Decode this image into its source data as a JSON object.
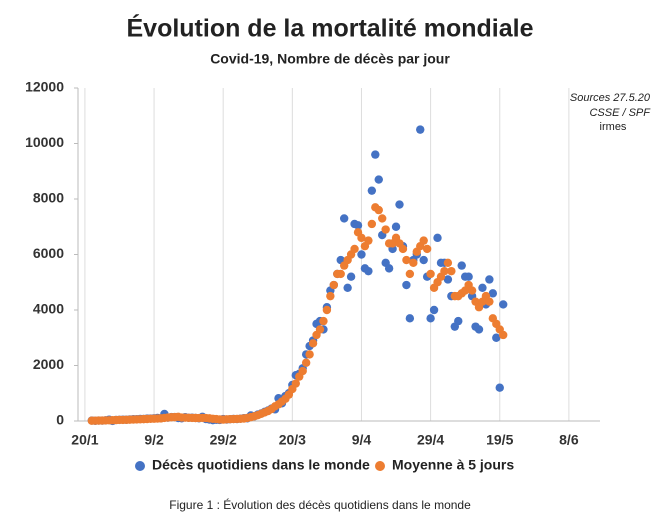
{
  "chart_data": {
    "type": "scatter",
    "title": "Évolution de la mortalité mondiale",
    "subtitle": "Covid-19, Nombre de décès par jour",
    "source_lines": [
      "Sources 27.5.20",
      "CSSE / SPF"
    ],
    "logo": "irmes",
    "caption": "Figure 1 : Évolution des décès quotidiens dans le monde",
    "legend": "bottom",
    "grid": "x",
    "xlim": [
      -2,
      149
    ],
    "xticks": [
      {
        "value": 0,
        "label": "20/1"
      },
      {
        "value": 20,
        "label": "9/2"
      },
      {
        "value": 40,
        "label": "29/2"
      },
      {
        "value": 60,
        "label": "20/3"
      },
      {
        "value": 80,
        "label": "9/4"
      },
      {
        "value": 100,
        "label": "29/4"
      },
      {
        "value": 120,
        "label": "19/5"
      },
      {
        "value": 140,
        "label": "8/6"
      }
    ],
    "ylim": [
      0,
      12000
    ],
    "yticks": [
      0,
      2000,
      4000,
      6000,
      8000,
      10000,
      12000
    ],
    "x": [
      2,
      3,
      4,
      5,
      6,
      7,
      8,
      9,
      10,
      11,
      12,
      13,
      14,
      15,
      16,
      17,
      18,
      19,
      20,
      21,
      22,
      23,
      24,
      25,
      26,
      27,
      28,
      29,
      30,
      31,
      32,
      33,
      34,
      35,
      36,
      37,
      38,
      39,
      40,
      41,
      42,
      43,
      44,
      45,
      46,
      47,
      48,
      49,
      50,
      51,
      52,
      53,
      54,
      55,
      56,
      57,
      58,
      59,
      60,
      61,
      62,
      63,
      64,
      65,
      66,
      67,
      68,
      69,
      70,
      71,
      72,
      73,
      74,
      75,
      76,
      77,
      78,
      79,
      80,
      81,
      82,
      83,
      84,
      85,
      86,
      87,
      88,
      89,
      90,
      91,
      92,
      93,
      94,
      95,
      96,
      97,
      98,
      99,
      100,
      101,
      102,
      103,
      104,
      105,
      106,
      107,
      108,
      109,
      110,
      111,
      112,
      113,
      114,
      115,
      116,
      117,
      118,
      119,
      120,
      121
    ],
    "series": [
      {
        "name": "Décès quotidiens dans le monde",
        "color": "#4472c4",
        "values": [
          17,
          8,
          16,
          14,
          26,
          49,
          2,
          38,
          42,
          46,
          45,
          57,
          64,
          66,
          73,
          73,
          86,
          89,
          97,
          108,
          97,
          254,
          121,
          143,
          142,
          105,
          98,
          136,
          114,
          118,
          109,
          97,
          150,
          71,
          52,
          29,
          44,
          37,
          68,
          53,
          66,
          73,
          70,
          83,
          100,
          99,
          200,
          170,
          230,
          270,
          330,
          380,
          450,
          420,
          820,
          640,
          900,
          1000,
          1300,
          1650,
          1700,
          1900,
          2400,
          2700,
          2900,
          3500,
          3600,
          3300,
          4100,
          4700,
          4900,
          5300,
          5800,
          7300,
          4800,
          5200,
          7100,
          7050,
          6000,
          5500,
          5400,
          8300,
          9600,
          8700,
          6700,
          5700,
          5500,
          6200,
          7000,
          7800,
          6300,
          4900,
          3700,
          5800,
          6000,
          10500,
          5800,
          5200,
          3700,
          4000,
          6600,
          5700,
          5700,
          5100,
          4500,
          3400,
          3600,
          5600,
          5200,
          5200,
          4500,
          3400,
          3300,
          4800,
          4200,
          5100,
          4600,
          3000,
          1200,
          4200
        ]
      },
      {
        "name": "Moyenne à 5 jours",
        "color": "#ed7d31",
        "values": [
          10,
          12,
          14,
          17,
          20,
          25,
          28,
          32,
          38,
          40,
          44,
          48,
          52,
          57,
          62,
          68,
          72,
          78,
          82,
          88,
          95,
          110,
          125,
          135,
          140,
          150,
          125,
          120,
          115,
          112,
          108,
          105,
          110,
          105,
          95,
          80,
          70,
          55,
          50,
          60,
          65,
          70,
          75,
          80,
          90,
          110,
          140,
          170,
          210,
          260,
          310,
          360,
          430,
          530,
          600,
          700,
          800,
          950,
          1150,
          1350,
          1600,
          1800,
          2100,
          2400,
          2800,
          3100,
          3300,
          3600,
          4000,
          4500,
          4900,
          5300,
          5300,
          5600,
          5800,
          6000,
          6200,
          6800,
          6600,
          6300,
          6500,
          7100,
          7700,
          7600,
          7300,
          6900,
          6400,
          6400,
          6600,
          6400,
          6200,
          5800,
          5300,
          5700,
          6100,
          6300,
          6500,
          6200,
          5300,
          4800,
          5000,
          5200,
          5400,
          5700,
          5400,
          4500,
          4500,
          4600,
          4700,
          4900,
          4700,
          4300,
          4100,
          4300,
          4500,
          4300,
          3700,
          3500,
          3300,
          3100
        ]
      }
    ]
  }
}
